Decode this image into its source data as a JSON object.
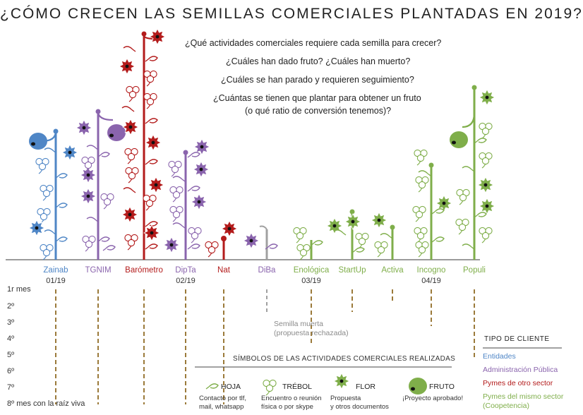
{
  "title": "¿CÓMO CRECEN LAS SEMILLAS COMERCIALES PLANTADAS EN 2019?",
  "questions": [
    "¿Qué actividades comerciales requiere cada semilla  para crecer?",
    "¿Cuáles han dado fruto? ¿Cuáles han muerto?",
    "¿Cuáles se han parado y requieren seguimiento?",
    "¿Cuántas se tienen que plantar para obtener un fruto",
    "(o qué ratio de conversión tenemos)?"
  ],
  "plants": [
    {
      "name": "Zainab",
      "date": "01/19",
      "color": "#4f86c6"
    },
    {
      "name": "TGNIM",
      "date": "",
      "color": "#8a64ad"
    },
    {
      "name": "Barómetro",
      "date": "",
      "color": "#b31b1b"
    },
    {
      "name": "DipTa",
      "date": "02/19",
      "color": "#8a64ad"
    },
    {
      "name": "Nat",
      "date": "",
      "color": "#b31b1b"
    },
    {
      "name": "DiBa",
      "date": "",
      "color": "#8a64ad"
    },
    {
      "name": "Enológica",
      "date": "03/19",
      "color": "#7fae4a"
    },
    {
      "name": "StartUp",
      "date": "",
      "color": "#7fae4a"
    },
    {
      "name": "Activa",
      "date": "",
      "color": "#7fae4a"
    },
    {
      "name": "Incogno",
      "date": "04/19",
      "color": "#7fae4a"
    },
    {
      "name": "Populi",
      "date": "",
      "color": "#7fae4a"
    }
  ],
  "months": [
    "1r mes",
    "2º",
    "3º",
    "4º",
    "5º",
    "6º",
    "7º",
    "8º mes con la raíz viva"
  ],
  "dead_seed_note": [
    "Semilla muerta",
    "(propuesta rechazada)"
  ],
  "symbols_legend": {
    "title": "SÍMBOLOS DE LAS ACTIVIDADES COMERCIALES REALIZADAS",
    "items": [
      {
        "name": "HOJA",
        "desc": [
          "Contacto por tlf,",
          "mail, whatsapp"
        ]
      },
      {
        "name": "TRÉBOL",
        "desc": [
          "Encuentro o reunión",
          "física o por skype"
        ]
      },
      {
        "name": "FLOR",
        "desc": [
          "Propuesta",
          "y otros documentos"
        ]
      },
      {
        "name": "FRUTO",
        "desc": [
          "¡Proyecto aprobado!"
        ]
      }
    ]
  },
  "client_types": {
    "title": "TIPO DE CLIENTE",
    "items": [
      {
        "label": "Entidades",
        "color": "#4f86c6"
      },
      {
        "label": "Administración Pública",
        "color": "#8a64ad"
      },
      {
        "label": "Pymes de otro sector",
        "color": "#b31b1b"
      },
      {
        "label": "Pymes del mismo sector",
        "label2": "(Coopetencia)",
        "color": "#7fae4a"
      }
    ]
  },
  "colors": {
    "entidades": "#4f86c6",
    "administracion": "#8a64ad",
    "pymes_otro": "#b31b1b",
    "pymes_mismo": "#7fae4a",
    "root": "#9b7a3a",
    "dead": "#a0a0a0"
  }
}
